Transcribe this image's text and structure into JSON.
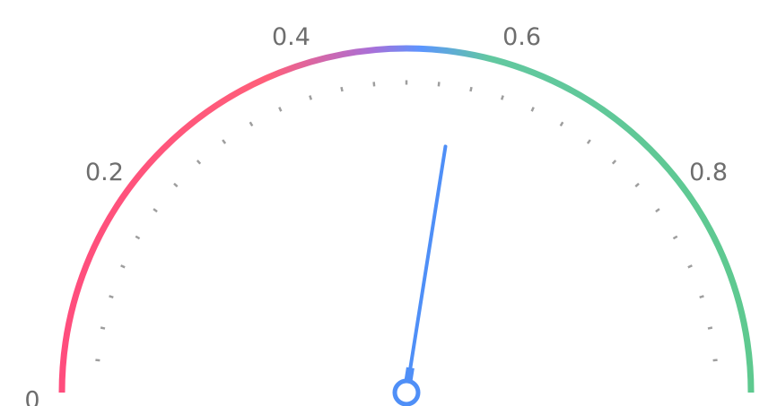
{
  "chart_data": {
    "type": "gauge",
    "min": 0,
    "max": 1,
    "value": 0.55,
    "tick_labels": [
      {
        "value": 0,
        "text": "0"
      },
      {
        "value": 0.2,
        "text": "0.2"
      },
      {
        "value": 0.4,
        "text": "0.4"
      },
      {
        "value": 0.6,
        "text": "0.6"
      },
      {
        "value": 0.8,
        "text": "0.8"
      }
    ],
    "minor_ticks": [
      0.0333,
      0.0667,
      0.1,
      0.1333,
      0.1667,
      0.2,
      0.2333,
      0.2667,
      0.3,
      0.3333,
      0.3667,
      0.4,
      0.4333,
      0.4667,
      0.5,
      0.5333,
      0.5667,
      0.6,
      0.6333,
      0.6667,
      0.7,
      0.7333,
      0.7667,
      0.8,
      0.8333,
      0.8667,
      0.9,
      0.9333,
      0.9667
    ],
    "arc_gradient": [
      {
        "offset": 0.0,
        "color": "#ff4d7d"
      },
      {
        "offset": 0.3,
        "color": "#ff5f7a"
      },
      {
        "offset": 0.45,
        "color": "#a86fd8"
      },
      {
        "offset": 0.52,
        "color": "#5c95ff"
      },
      {
        "offset": 0.62,
        "color": "#62c8a0"
      },
      {
        "offset": 1.0,
        "color": "#5ec98f"
      }
    ],
    "needle_color": "#4f8ff7",
    "hub_color": "#4f8ff7",
    "minor_tick_color": "#9e9e9e"
  }
}
